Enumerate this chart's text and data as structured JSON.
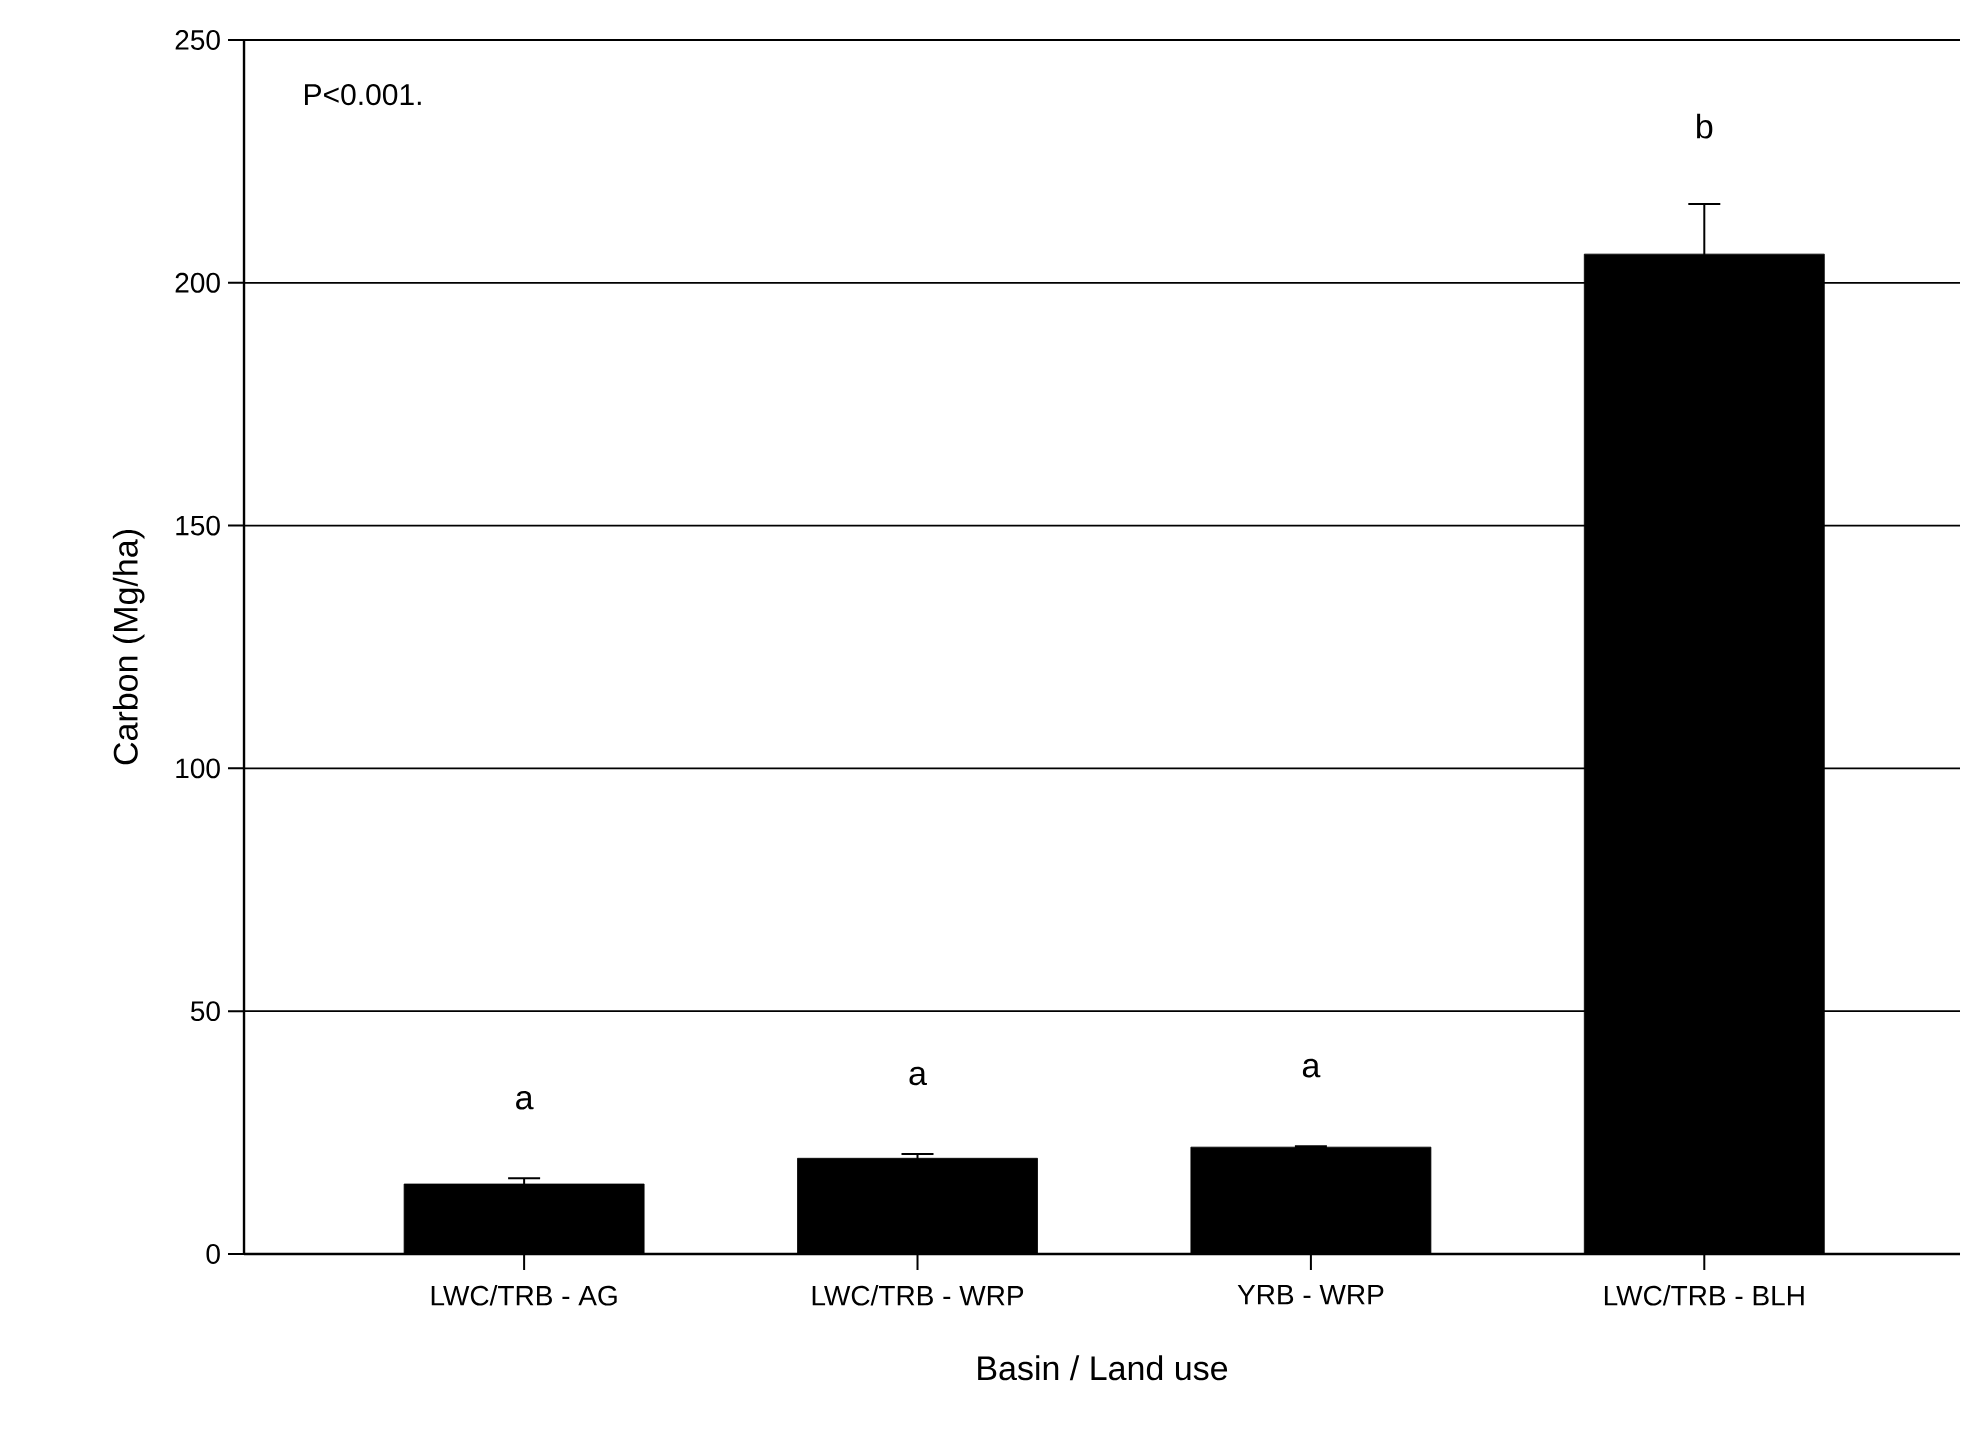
{
  "chart_data": {
    "type": "bar",
    "xlabel": "Basin / Land use",
    "ylabel": "Carbon (Mg/ha)",
    "categories": [
      "LWC/TRB - AG",
      "LWC/TRB - WRP",
      "YRB - WRP",
      "LWC/TRB - BLH"
    ],
    "values": [
      14.4,
      19.7,
      22.0,
      205.9
    ],
    "errors": [
      1.2,
      0.9,
      0.2,
      10.3
    ],
    "color": "#000000",
    "ylim": [
      0,
      250
    ],
    "yticks": [
      0,
      50,
      100,
      150,
      200,
      250
    ],
    "grid": "y",
    "annotations": [
      "P<0.001.",
      "a",
      "a",
      "a",
      "b"
    ]
  }
}
